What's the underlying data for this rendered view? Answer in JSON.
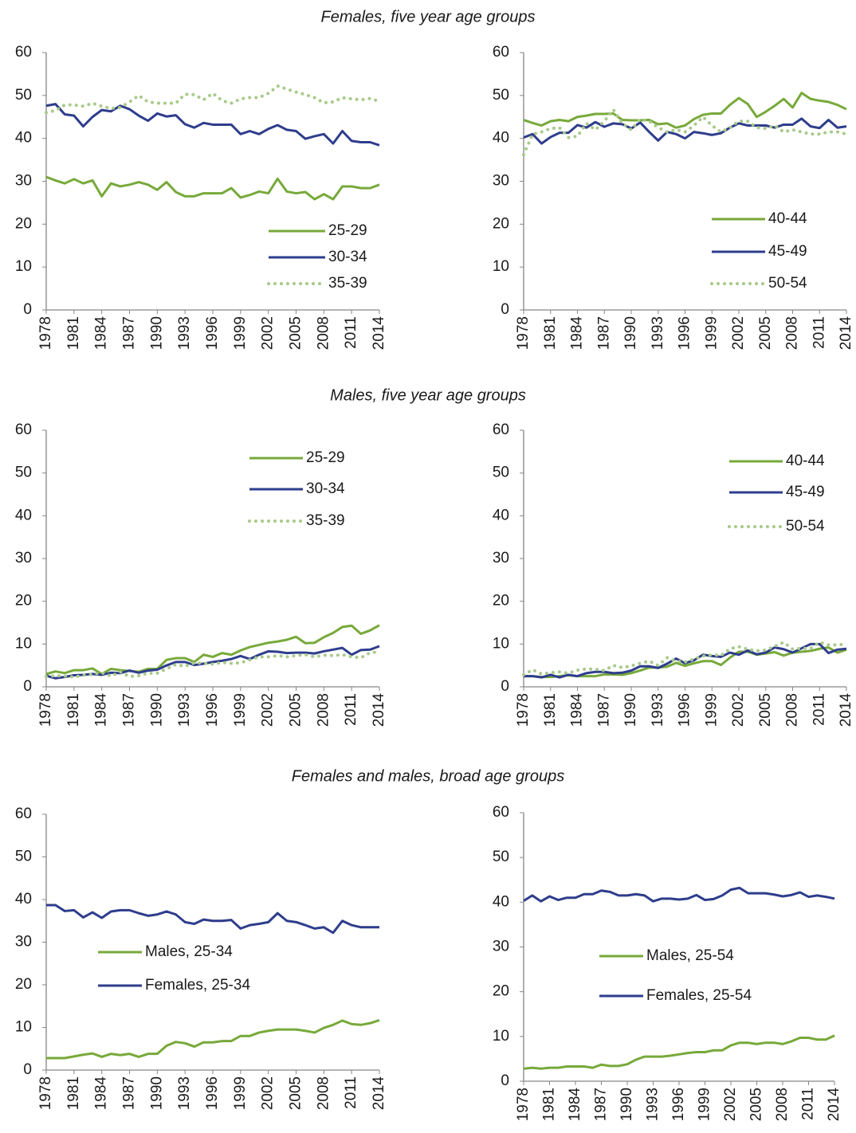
{
  "chart_data": [
    {
      "type": "line",
      "title": "Females, five year age groups",
      "x": [
        1978,
        1979,
        1980,
        1981,
        1982,
        1983,
        1984,
        1985,
        1986,
        1987,
        1988,
        1989,
        1990,
        1991,
        1992,
        1993,
        1994,
        1995,
        1996,
        1997,
        1998,
        1999,
        2000,
        2001,
        2002,
        2003,
        2004,
        2005,
        2006,
        2007,
        2008,
        2009,
        2010,
        2011,
        2012,
        2013,
        2014
      ],
      "xlim": [
        1978,
        2014
      ],
      "xticks": [
        1978,
        1981,
        1984,
        1987,
        1990,
        1993,
        1996,
        1999,
        2002,
        2005,
        2008,
        2011,
        2014
      ],
      "ylim": [
        0,
        60
      ],
      "yticks": [
        0,
        10,
        20,
        30,
        40,
        50,
        60
      ],
      "series": [
        {
          "name": "25-29",
          "color": "#77a93a",
          "style": "solid",
          "values": [
            31,
            30.2,
            29.5,
            30.5,
            29.5,
            30.2,
            26.5,
            29.5,
            28.8,
            29.2,
            29.8,
            29.2,
            28,
            29.8,
            27.5,
            26.5,
            26.5,
            27.2,
            27.2,
            27.2,
            28.4,
            26.2,
            26.8,
            27.6,
            27.2,
            30.6,
            27.6,
            27.2,
            27.5,
            25.8,
            27,
            25.8,
            28.8,
            28.8,
            28.4,
            28.4,
            29.2
          ]
        },
        {
          "name": "30-34",
          "color": "#2e3d8c",
          "style": "solid",
          "values": [
            47.6,
            48,
            45.6,
            45.3,
            42.8,
            45,
            46.6,
            46.3,
            47.6,
            46.8,
            45.3,
            44.1,
            45.8,
            45.1,
            45.4,
            43.3,
            42.5,
            43.6,
            43.2,
            43.2,
            43.2,
            41,
            41.7,
            41,
            42.2,
            43.1,
            42,
            41.7,
            39.9,
            40.5,
            41,
            38.8,
            41.7,
            39.4,
            39.1,
            39.1,
            38.4
          ]
        },
        {
          "name": "35-39",
          "color": "#a8c98a",
          "style": "dotted",
          "values": [
            46,
            46.5,
            47.8,
            47.8,
            47.5,
            48.2,
            47.5,
            47,
            47.2,
            48.5,
            50,
            48.5,
            48.2,
            48.2,
            48.2,
            50.3,
            50.2,
            49,
            50.5,
            48.8,
            48.2,
            49.2,
            49.5,
            49.5,
            50.5,
            52.2,
            51.5,
            50.8,
            50.2,
            49.5,
            48.3,
            48.5,
            49.5,
            49.2,
            49,
            49.3,
            48.6
          ]
        }
      ]
    },
    {
      "type": "line",
      "x": [
        1978,
        1979,
        1980,
        1981,
        1982,
        1983,
        1984,
        1985,
        1986,
        1987,
        1988,
        1989,
        1990,
        1991,
        1992,
        1993,
        1994,
        1995,
        1996,
        1997,
        1998,
        1999,
        2000,
        2001,
        2002,
        2003,
        2004,
        2005,
        2006,
        2007,
        2008,
        2009,
        2010,
        2011,
        2012,
        2013,
        2014
      ],
      "xlim": [
        1978,
        2014
      ],
      "xticks": [
        1978,
        1981,
        1984,
        1987,
        1990,
        1993,
        1996,
        1999,
        2002,
        2005,
        2008,
        2011,
        2014
      ],
      "ylim": [
        0,
        60
      ],
      "yticks": [
        0,
        10,
        20,
        30,
        40,
        50,
        60
      ],
      "series": [
        {
          "name": "40-44",
          "color": "#77a93a",
          "style": "solid",
          "values": [
            44.3,
            43.6,
            43,
            44,
            44.3,
            44,
            45,
            45.3,
            45.7,
            45.7,
            45.8,
            44.3,
            44.2,
            44.2,
            44.3,
            43.3,
            43.5,
            42.5,
            43,
            44.5,
            45.5,
            45.8,
            45.8,
            47.8,
            49.4,
            48,
            45,
            46.2,
            47.6,
            49.2,
            47.2,
            50.6,
            49.2,
            48.8,
            48.5,
            47.8,
            46.8
          ]
        },
        {
          "name": "45-49",
          "color": "#2e3d8c",
          "style": "solid",
          "values": [
            40.2,
            41,
            38.8,
            40.3,
            41.3,
            41.3,
            43.1,
            42.5,
            43.8,
            42.7,
            43.5,
            43.3,
            42.3,
            43.7,
            41.5,
            39.5,
            41.5,
            41,
            40,
            41.5,
            41.2,
            40.8,
            41.2,
            42.5,
            43.5,
            43,
            43,
            43,
            42.5,
            43.2,
            43.2,
            44.6,
            42.8,
            42.4,
            44.3,
            42.5,
            42.8
          ]
        },
        {
          "name": "50-54",
          "color": "#a8c98a",
          "style": "dotted",
          "values": [
            36.2,
            41,
            41.5,
            42.3,
            42.5,
            40.2,
            40.5,
            43.5,
            42,
            44,
            46.7,
            43.5,
            42,
            44.5,
            44,
            42.5,
            41.5,
            42,
            41.5,
            43,
            45,
            43,
            41.5,
            42.5,
            44,
            44,
            42.5,
            42.3,
            43,
            41.5,
            42,
            41.5,
            41,
            41,
            41.5,
            41.5,
            41
          ]
        }
      ]
    },
    {
      "type": "line",
      "title": "Males, five year age groups",
      "x": [
        1978,
        1979,
        1980,
        1981,
        1982,
        1983,
        1984,
        1985,
        1986,
        1987,
        1988,
        1989,
        1990,
        1991,
        1992,
        1993,
        1994,
        1995,
        1996,
        1997,
        1998,
        1999,
        2000,
        2001,
        2002,
        2003,
        2004,
        2005,
        2006,
        2007,
        2008,
        2009,
        2010,
        2011,
        2012,
        2013,
        2014
      ],
      "xlim": [
        1978,
        2014
      ],
      "xticks": [
        1978,
        1981,
        1984,
        1987,
        1990,
        1993,
        1996,
        1999,
        2002,
        2005,
        2008,
        2011,
        2014
      ],
      "ylim": [
        0,
        60
      ],
      "yticks": [
        0,
        10,
        20,
        30,
        40,
        50,
        60
      ],
      "series": [
        {
          "name": "25-29",
          "color": "#77a93a",
          "style": "solid",
          "values": [
            3,
            3.6,
            3.2,
            3.9,
            3.9,
            4.3,
            3,
            4.2,
            3.9,
            3.7,
            3.5,
            4.2,
            4.2,
            6.3,
            6.7,
            6.7,
            5.8,
            7.5,
            7,
            7.9,
            7.5,
            8.5,
            9.3,
            9.8,
            10.3,
            10.6,
            11,
            11.7,
            10.2,
            10.3,
            11.6,
            12.6,
            14,
            14.3,
            12.4,
            13.2,
            14.4
          ]
        },
        {
          "name": "30-34",
          "color": "#2e3d8c",
          "style": "solid",
          "values": [
            2.6,
            2,
            2.3,
            2.7,
            2.8,
            3,
            2.8,
            3.3,
            3.2,
            3.8,
            3.3,
            3.8,
            4,
            5,
            5.8,
            5.8,
            5.1,
            5.4,
            5.8,
            6.1,
            6.5,
            7.2,
            6.5,
            7.5,
            8.3,
            8.2,
            7.9,
            8,
            8,
            7.8,
            8.3,
            8.7,
            9.1,
            7.5,
            8.6,
            8.7,
            9.5
          ]
        },
        {
          "name": "35-39",
          "color": "#a8c98a",
          "style": "dotted",
          "values": [
            2.4,
            2.6,
            2.5,
            2.3,
            2.7,
            2.9,
            3.3,
            2.5,
            3.5,
            2.4,
            2.6,
            3.2,
            3.2,
            4.2,
            5.2,
            4.8,
            5.6,
            5.5,
            5.3,
            5.7,
            5.5,
            5.6,
            6.3,
            7,
            7,
            7.3,
            7,
            7.3,
            7.5,
            7,
            7.4,
            7.3,
            7.5,
            7,
            6.8,
            8,
            8.2
          ]
        }
      ]
    },
    {
      "type": "line",
      "x": [
        1978,
        1979,
        1980,
        1981,
        1982,
        1983,
        1984,
        1985,
        1986,
        1987,
        1988,
        1989,
        1990,
        1991,
        1992,
        1993,
        1994,
        1995,
        1996,
        1997,
        1998,
        1999,
        2000,
        2001,
        2002,
        2003,
        2004,
        2005,
        2006,
        2007,
        2008,
        2009,
        2010,
        2011,
        2012,
        2013,
        2014
      ],
      "xlim": [
        1978,
        2014
      ],
      "xticks": [
        1978,
        1981,
        1984,
        1987,
        1990,
        1993,
        1996,
        1999,
        2002,
        2005,
        2008,
        2011,
        2014
      ],
      "ylim": [
        0,
        60
      ],
      "yticks": [
        0,
        10,
        20,
        30,
        40,
        50,
        60
      ],
      "series": [
        {
          "name": "40-44",
          "color": "#77a93a",
          "style": "solid",
          "values": [
            2.5,
            2.5,
            2.3,
            2.3,
            2.5,
            2.7,
            2.5,
            2.5,
            2.5,
            2.9,
            2.9,
            2.8,
            3.2,
            3.8,
            4.5,
            4.5,
            4.7,
            5.6,
            4.9,
            5.5,
            6,
            6,
            5.1,
            6.8,
            8.2,
            8.2,
            7.5,
            7.8,
            8.1,
            7.3,
            8,
            8.2,
            8.4,
            8.9,
            9.2,
            8,
            8.7
          ]
        },
        {
          "name": "45-49",
          "color": "#2e3d8c",
          "style": "solid",
          "values": [
            2.5,
            2.5,
            2.2,
            2.8,
            2.2,
            2.8,
            2.5,
            3.2,
            3.5,
            3.5,
            3.2,
            3.3,
            3.8,
            4.8,
            4.8,
            4.4,
            5.4,
            6.6,
            5.5,
            6.2,
            7.5,
            7.2,
            7,
            8,
            7.5,
            8.5,
            7.6,
            8,
            9.2,
            8.8,
            8,
            9,
            10,
            10,
            7.9,
            8.7,
            8.9
          ]
        },
        {
          "name": "50-54",
          "color": "#a8c98a",
          "style": "dotted",
          "values": [
            2.8,
            4,
            3,
            3.3,
            3.5,
            3.2,
            3.9,
            4.2,
            4.1,
            3.8,
            5,
            4.5,
            4.9,
            5.5,
            6,
            5,
            6.8,
            6,
            5.8,
            6.5,
            7.2,
            7.5,
            7.3,
            8.9,
            9.4,
            8.8,
            8.4,
            8.6,
            9.5,
            10.4,
            8.8,
            9,
            9,
            10.4,
            9.8,
            9.8,
            10
          ]
        }
      ]
    },
    {
      "type": "line",
      "title": "Females and males, broad age groups",
      "x": [
        1978,
        1979,
        1980,
        1981,
        1982,
        1983,
        1984,
        1985,
        1986,
        1987,
        1988,
        1989,
        1990,
        1991,
        1992,
        1993,
        1994,
        1995,
        1996,
        1997,
        1998,
        1999,
        2000,
        2001,
        2002,
        2003,
        2004,
        2005,
        2006,
        2007,
        2008,
        2009,
        2010,
        2011,
        2012,
        2013,
        2014
      ],
      "xlim": [
        1978,
        2014
      ],
      "xticks": [
        1978,
        1981,
        1984,
        1987,
        1990,
        1993,
        1996,
        1999,
        2002,
        2005,
        2008,
        2011,
        2014
      ],
      "ylim": [
        0,
        60
      ],
      "yticks": [
        0,
        10,
        20,
        30,
        40,
        50,
        60
      ],
      "series": [
        {
          "name": "Males, 25-34",
          "color": "#77a93a",
          "style": "solid",
          "values": [
            2.8,
            2.8,
            2.8,
            3.2,
            3.6,
            3.9,
            3.1,
            3.8,
            3.5,
            3.8,
            3.1,
            3.8,
            3.8,
            5.7,
            6.6,
            6.3,
            5.5,
            6.5,
            6.5,
            6.8,
            6.8,
            8,
            8,
            8.8,
            9.2,
            9.5,
            9.5,
            9.5,
            9.2,
            8.8,
            9.9,
            10.6,
            11.6,
            10.8,
            10.6,
            11,
            11.7
          ]
        },
        {
          "name": "Females, 25-34",
          "color": "#2e3d8c",
          "style": "solid",
          "values": [
            38.7,
            38.7,
            37.3,
            37.5,
            35.8,
            37,
            35.7,
            37.2,
            37.5,
            37.5,
            36.8,
            36.2,
            36.5,
            37.2,
            36.5,
            34.7,
            34.3,
            35.3,
            35,
            35,
            35.2,
            33.2,
            34,
            34.3,
            34.7,
            36.8,
            35,
            34.7,
            34,
            33.2,
            33.5,
            32.2,
            35,
            34,
            33.5,
            33.5,
            33.5
          ]
        }
      ]
    },
    {
      "type": "line",
      "x": [
        1978,
        1979,
        1980,
        1981,
        1982,
        1983,
        1984,
        1985,
        1986,
        1987,
        1988,
        1989,
        1990,
        1991,
        1992,
        1993,
        1994,
        1995,
        1996,
        1997,
        1998,
        1999,
        2000,
        2001,
        2002,
        2003,
        2004,
        2005,
        2006,
        2007,
        2008,
        2009,
        2010,
        2011,
        2012,
        2013,
        2014
      ],
      "xlim": [
        1978,
        2014
      ],
      "xticks": [
        1978,
        1981,
        1984,
        1987,
        1990,
        1993,
        1996,
        1999,
        2002,
        2005,
        2008,
        2011,
        2014
      ],
      "ylim": [
        0,
        60
      ],
      "yticks": [
        0,
        10,
        20,
        30,
        40,
        50,
        60
      ],
      "series": [
        {
          "name": "Males, 25-54",
          "color": "#77a93a",
          "style": "solid",
          "values": [
            2.8,
            3,
            2.8,
            3,
            3,
            3.3,
            3.3,
            3.3,
            3,
            3.7,
            3.4,
            3.4,
            3.8,
            4.8,
            5.5,
            5.5,
            5.5,
            5.7,
            6,
            6.3,
            6.5,
            6.5,
            6.9,
            6.9,
            8,
            8.6,
            8.6,
            8.3,
            8.6,
            8.6,
            8.3,
            8.9,
            9.7,
            9.7,
            9.3,
            9.3,
            10.2
          ]
        },
        {
          "name": "Females, 25-54",
          "color": "#2e3d8c",
          "style": "solid",
          "values": [
            40.3,
            41.5,
            40.2,
            41.3,
            40.5,
            41,
            41,
            41.8,
            41.8,
            42.6,
            42.3,
            41.5,
            41.5,
            41.8,
            41.5,
            40.2,
            40.8,
            40.8,
            40.6,
            40.8,
            41.6,
            40.5,
            40.7,
            41.5,
            42.8,
            43.2,
            42,
            42,
            42,
            41.7,
            41.3,
            41.6,
            42.2,
            41.2,
            41.5,
            41.2,
            40.8
          ]
        }
      ]
    }
  ]
}
